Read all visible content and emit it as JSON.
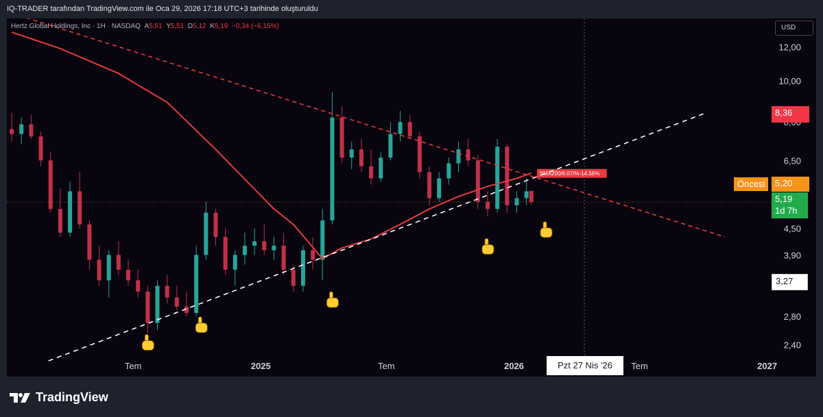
{
  "header": {
    "title": "IQ-TRADER tarafından TradingView.com ile Oca 29, 2026 17:18 UTC+3 tarihinde oluşturuldu"
  },
  "legend": {
    "symbol": "Hertz Global Holdings, Inc · 1H · NASDAQ",
    "open_label": "A",
    "open": "5,51",
    "high_label": "Y",
    "high": "5,51",
    "low_label": "D",
    "low": "5,12",
    "close_label": "K",
    "close": "5,19",
    "change": "−0,34 (−6,15%)"
  },
  "currency": "USD",
  "price_tags": {
    "high_line": "8,36",
    "premarket_label": "Öncesi",
    "premarket": "5,20",
    "last": "5,19",
    "countdown": "1d 7h",
    "low_line": "3,27"
  },
  "crosshair_date": "Pzt 27 Nis '26",
  "footer": {
    "brand": "TradingView"
  },
  "colors": {
    "background": "#08050f",
    "up": "#26a69a",
    "down": "#c2304a",
    "sma": "#e8393f",
    "resistance": "#e8393f",
    "support": "#ffffff",
    "premarket": "#f7931a",
    "last": "#22ab4c"
  },
  "chart_data": {
    "type": "candlestick",
    "y_axis": {
      "scale": "log",
      "ticks": [
        "12,00",
        "10,00",
        "8,00",
        "6,50",
        "5,20",
        "4,50",
        "3,90",
        "2,80",
        "2,40"
      ],
      "range": [
        2.2,
        14.0
      ]
    },
    "x_axis": {
      "ticks": [
        "Tem",
        "2025",
        "Tem",
        "2026",
        "Tem",
        "2027"
      ]
    },
    "sma_label": "SMA200/6.07/%-14.56%",
    "series": [
      {
        "name": "HTZ",
        "candles": [
          {
            "t": "2024-01-08",
            "o": 7.7,
            "h": 8.4,
            "l": 7.2,
            "c": 7.5
          },
          {
            "t": "2024-01-22",
            "o": 7.5,
            "h": 8.2,
            "l": 7.1,
            "c": 7.9
          },
          {
            "t": "2024-02-05",
            "o": 7.9,
            "h": 8.3,
            "l": 7.3,
            "c": 7.4
          },
          {
            "t": "2024-02-19",
            "o": 7.4,
            "h": 7.6,
            "l": 6.3,
            "c": 6.5
          },
          {
            "t": "2024-03-04",
            "o": 6.5,
            "h": 6.8,
            "l": 4.9,
            "c": 5.0
          },
          {
            "t": "2024-03-18",
            "o": 5.0,
            "h": 5.6,
            "l": 4.3,
            "c": 4.4
          },
          {
            "t": "2024-04-01",
            "o": 4.4,
            "h": 5.8,
            "l": 4.3,
            "c": 5.5
          },
          {
            "t": "2024-04-15",
            "o": 5.5,
            "h": 6.1,
            "l": 4.5,
            "c": 4.6
          },
          {
            "t": "2024-04-29",
            "o": 4.6,
            "h": 4.7,
            "l": 3.6,
            "c": 3.8
          },
          {
            "t": "2024-05-13",
            "o": 3.8,
            "h": 4.1,
            "l": 3.3,
            "c": 3.4
          },
          {
            "t": "2024-05-27",
            "o": 3.4,
            "h": 4.0,
            "l": 3.1,
            "c": 3.9
          },
          {
            "t": "2024-06-10",
            "o": 3.9,
            "h": 4.2,
            "l": 3.5,
            "c": 3.6
          },
          {
            "t": "2024-06-24",
            "o": 3.6,
            "h": 3.8,
            "l": 3.3,
            "c": 3.4
          },
          {
            "t": "2024-07-08",
            "o": 3.4,
            "h": 3.6,
            "l": 3.1,
            "c": 3.2
          },
          {
            "t": "2024-07-22",
            "o": 3.2,
            "h": 3.3,
            "l": 2.55,
            "c": 2.7
          },
          {
            "t": "2024-08-05",
            "o": 2.7,
            "h": 3.4,
            "l": 2.6,
            "c": 3.3
          },
          {
            "t": "2024-08-19",
            "o": 3.3,
            "h": 3.5,
            "l": 3.0,
            "c": 3.1
          },
          {
            "t": "2024-09-02",
            "o": 3.1,
            "h": 3.3,
            "l": 2.9,
            "c": 2.95
          },
          {
            "t": "2024-09-16",
            "o": 2.95,
            "h": 3.2,
            "l": 2.8,
            "c": 2.85
          },
          {
            "t": "2024-09-30",
            "o": 2.85,
            "h": 4.1,
            "l": 2.8,
            "c": 3.9
          },
          {
            "t": "2024-10-14",
            "o": 3.9,
            "h": 5.2,
            "l": 3.8,
            "c": 4.9
          },
          {
            "t": "2024-10-28",
            "o": 4.9,
            "h": 5.0,
            "l": 4.1,
            "c": 4.3
          },
          {
            "t": "2024-11-11",
            "o": 4.3,
            "h": 4.5,
            "l": 3.5,
            "c": 3.6
          },
          {
            "t": "2024-11-25",
            "o": 3.6,
            "h": 4.0,
            "l": 3.3,
            "c": 3.9
          },
          {
            "t": "2024-12-09",
            "o": 3.9,
            "h": 4.4,
            "l": 3.7,
            "c": 4.1
          },
          {
            "t": "2024-12-23",
            "o": 4.1,
            "h": 4.5,
            "l": 3.9,
            "c": 4.2
          },
          {
            "t": "2025-01-06",
            "o": 4.2,
            "h": 4.6,
            "l": 3.9,
            "c": 4.0
          },
          {
            "t": "2025-01-20",
            "o": 4.0,
            "h": 4.3,
            "l": 3.8,
            "c": 4.1
          },
          {
            "t": "2025-02-03",
            "o": 4.1,
            "h": 4.4,
            "l": 3.5,
            "c": 3.6
          },
          {
            "t": "2025-02-17",
            "o": 3.6,
            "h": 3.7,
            "l": 3.2,
            "c": 3.3
          },
          {
            "t": "2025-03-03",
            "o": 3.3,
            "h": 4.1,
            "l": 3.2,
            "c": 4.0
          },
          {
            "t": "2025-03-17",
            "o": 4.0,
            "h": 4.3,
            "l": 3.6,
            "c": 3.8
          },
          {
            "t": "2025-03-31",
            "o": 3.8,
            "h": 5.0,
            "l": 3.4,
            "c": 4.7
          },
          {
            "t": "2025-04-14",
            "o": 4.7,
            "h": 9.4,
            "l": 4.6,
            "c": 8.2
          },
          {
            "t": "2025-04-28",
            "o": 8.2,
            "h": 8.7,
            "l": 6.4,
            "c": 6.6
          },
          {
            "t": "2025-05-12",
            "o": 6.6,
            "h": 7.2,
            "l": 6.2,
            "c": 6.9
          },
          {
            "t": "2025-05-26",
            "o": 6.9,
            "h": 7.3,
            "l": 6.1,
            "c": 6.3
          },
          {
            "t": "2025-06-09",
            "o": 6.3,
            "h": 6.9,
            "l": 5.7,
            "c": 5.9
          },
          {
            "t": "2025-06-23",
            "o": 5.9,
            "h": 6.8,
            "l": 5.8,
            "c": 6.6
          },
          {
            "t": "2025-07-07",
            "o": 6.6,
            "h": 8.0,
            "l": 6.5,
            "c": 7.5
          },
          {
            "t": "2025-07-21",
            "o": 7.5,
            "h": 8.5,
            "l": 7.2,
            "c": 8.0
          },
          {
            "t": "2025-08-04",
            "o": 8.0,
            "h": 8.3,
            "l": 7.3,
            "c": 7.4
          },
          {
            "t": "2025-08-18",
            "o": 7.4,
            "h": 7.6,
            "l": 5.9,
            "c": 6.1
          },
          {
            "t": "2025-09-01",
            "o": 6.1,
            "h": 6.3,
            "l": 5.1,
            "c": 5.3
          },
          {
            "t": "2025-09-15",
            "o": 5.3,
            "h": 6.1,
            "l": 5.2,
            "c": 5.9
          },
          {
            "t": "2025-09-29",
            "o": 5.9,
            "h": 6.6,
            "l": 5.7,
            "c": 6.4
          },
          {
            "t": "2025-10-13",
            "o": 6.4,
            "h": 7.2,
            "l": 6.1,
            "c": 6.9
          },
          {
            "t": "2025-10-27",
            "o": 6.9,
            "h": 7.3,
            "l": 6.3,
            "c": 6.5
          },
          {
            "t": "2025-11-10",
            "o": 6.5,
            "h": 6.7,
            "l": 5.0,
            "c": 5.2
          },
          {
            "t": "2025-11-24",
            "o": 5.2,
            "h": 5.5,
            "l": 4.8,
            "c": 5.0
          },
          {
            "t": "2025-12-08",
            "o": 5.0,
            "h": 7.3,
            "l": 4.9,
            "c": 7.0
          },
          {
            "t": "2025-12-22",
            "o": 7.0,
            "h": 7.1,
            "l": 4.9,
            "c": 5.1
          },
          {
            "t": "2026-01-05",
            "o": 5.1,
            "h": 5.5,
            "l": 4.9,
            "c": 5.3
          },
          {
            "t": "2026-01-19",
            "o": 5.3,
            "h": 5.9,
            "l": 5.1,
            "c": 5.5
          },
          {
            "t": "2026-01-26",
            "o": 5.51,
            "h": 5.51,
            "l": 5.12,
            "c": 5.19
          }
        ]
      }
    ],
    "sma200": [
      {
        "t": "2024-01-08",
        "v": 13.0
      },
      {
        "t": "2024-03-18",
        "v": 11.9
      },
      {
        "t": "2024-06-10",
        "v": 10.4
      },
      {
        "t": "2024-08-19",
        "v": 8.9
      },
      {
        "t": "2024-10-28",
        "v": 6.9
      },
      {
        "t": "2025-01-20",
        "v": 5.0
      },
      {
        "t": "2025-02-17",
        "v": 4.6
      },
      {
        "t": "2025-03-31",
        "v": 3.82
      },
      {
        "t": "2025-04-28",
        "v": 4.05
      },
      {
        "t": "2025-06-09",
        "v": 4.25
      },
      {
        "t": "2025-07-21",
        "v": 4.6
      },
      {
        "t": "2025-09-01",
        "v": 5.0
      },
      {
        "t": "2025-10-13",
        "v": 5.35
      },
      {
        "t": "2025-11-24",
        "v": 5.65
      },
      {
        "t": "2026-01-05",
        "v": 5.9
      },
      {
        "t": "2026-01-26",
        "v": 6.07
      }
    ],
    "trendlines": [
      {
        "name": "resistance",
        "points": [
          {
            "t": "2024-01-08",
            "v": 14.4
          },
          {
            "t": "2026-11-01",
            "v": 4.3
          }
        ]
      },
      {
        "name": "support",
        "points": [
          {
            "t": "2024-03-01",
            "v": 2.2
          },
          {
            "t": "2026-10-01",
            "v": 8.36
          }
        ]
      }
    ],
    "markers": [
      {
        "t": "2024-07-22",
        "v": 2.5
      },
      {
        "t": "2024-10-07",
        "v": 2.75
      },
      {
        "t": "2025-04-14",
        "v": 3.15
      },
      {
        "t": "2025-11-24",
        "v": 4.2
      },
      {
        "t": "2026-02-16",
        "v": 4.6
      }
    ],
    "horizontal_lines": [
      {
        "v": 5.19
      }
    ]
  }
}
